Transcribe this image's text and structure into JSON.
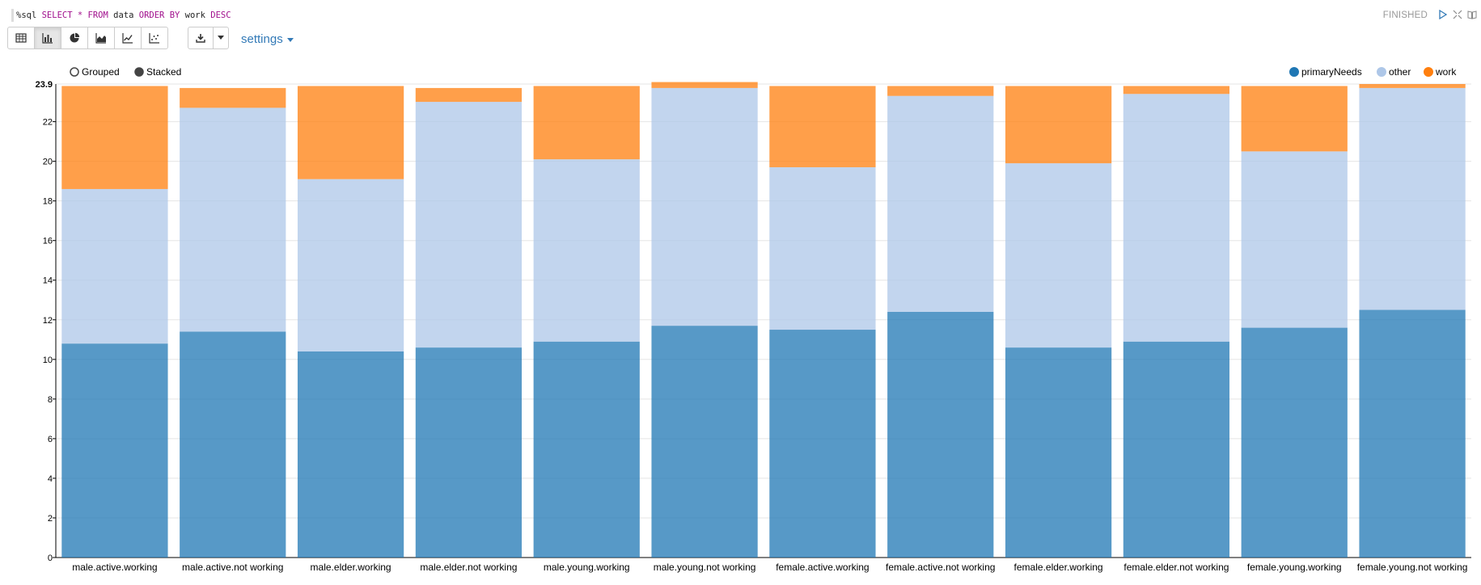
{
  "paragraph": {
    "code_tokens": [
      {
        "t": "%sql ",
        "k": "tx"
      },
      {
        "t": "SELECT",
        "k": "kw"
      },
      {
        "t": " ",
        "k": "tx"
      },
      {
        "t": "*",
        "k": "kw"
      },
      {
        "t": " ",
        "k": "tx"
      },
      {
        "t": "FROM",
        "k": "kw"
      },
      {
        "t": " data ",
        "k": "tx"
      },
      {
        "t": "ORDER BY",
        "k": "kw"
      },
      {
        "t": " work ",
        "k": "tx"
      },
      {
        "t": "DESC",
        "k": "kw"
      }
    ],
    "status": "FINISHED"
  },
  "toolbar": {
    "settings_label": "settings",
    "view_buttons": [
      {
        "name": "table-view-button",
        "icon": "table-icon",
        "active": false
      },
      {
        "name": "bar-chart-button",
        "icon": "bar-chart-icon",
        "active": true
      },
      {
        "name": "pie-chart-button",
        "icon": "pie-chart-icon",
        "active": false
      },
      {
        "name": "area-chart-button",
        "icon": "area-chart-icon",
        "active": false
      },
      {
        "name": "line-chart-button",
        "icon": "line-chart-icon",
        "active": false
      },
      {
        "name": "scatter-chart-button",
        "icon": "scatter-chart-icon",
        "active": false
      }
    ]
  },
  "controls": {
    "grouped_label": "Grouped",
    "stacked_label": "Stacked",
    "selected": "Stacked"
  },
  "colors": {
    "primaryNeeds": "#1f77b4",
    "other": "#aec7e8",
    "work": "#ff7f0e"
  },
  "chart_data": {
    "type": "bar",
    "stacked": true,
    "categories": [
      "male.active.working",
      "male.active.not working",
      "male.elder.working",
      "male.elder.not working",
      "male.young.working",
      "male.young.not working",
      "female.active.working",
      "female.active.not working",
      "female.elder.working",
      "female.elder.not working",
      "female.young.working",
      "female.young.not working"
    ],
    "series": [
      {
        "name": "primaryNeeds",
        "values": [
          10.8,
          11.4,
          10.4,
          10.6,
          10.9,
          11.7,
          11.5,
          12.4,
          10.6,
          10.9,
          11.6,
          12.5
        ]
      },
      {
        "name": "other",
        "values": [
          7.8,
          11.3,
          8.7,
          12.4,
          9.2,
          12.0,
          8.2,
          10.9,
          9.3,
          12.5,
          8.9,
          11.2
        ]
      },
      {
        "name": "work",
        "values": [
          5.2,
          1.0,
          4.7,
          0.7,
          3.7,
          0.3,
          4.1,
          0.5,
          3.9,
          0.4,
          3.3,
          0.2
        ]
      }
    ],
    "yticks": [
      0,
      2,
      4,
      6,
      8,
      10,
      12,
      14,
      16,
      18,
      20,
      22
    ],
    "ymax_label": "23.9",
    "ylim": [
      0,
      23.9
    ],
    "legend": [
      "primaryNeeds",
      "other",
      "work"
    ],
    "legend_position": "top-right",
    "grid": true
  }
}
